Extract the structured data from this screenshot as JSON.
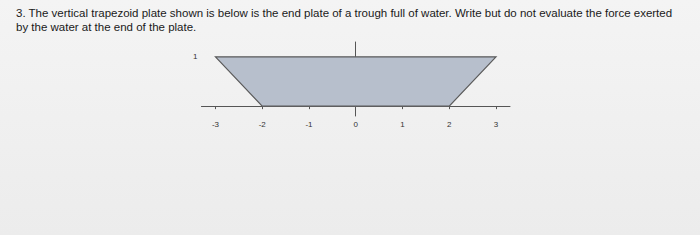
{
  "question": {
    "number": "3.",
    "text": "The vertical trapezoid plate shown is below is the end plate of a trough full of water. Write but do not evaluate the force exerted by the water at the end of the plate."
  },
  "chart_data": {
    "type": "polygon",
    "x": [
      -3,
      -2,
      2,
      3
    ],
    "y": [
      1,
      0,
      0,
      1
    ],
    "color": "#b7bfcc",
    "xlim": [
      -3.3,
      3.3
    ],
    "xticks": [
      -3,
      -2,
      -1,
      0,
      1,
      2,
      3
    ],
    "ylim": [
      -0.2,
      1.3
    ],
    "yticks": [
      1
    ],
    "grid": false
  }
}
